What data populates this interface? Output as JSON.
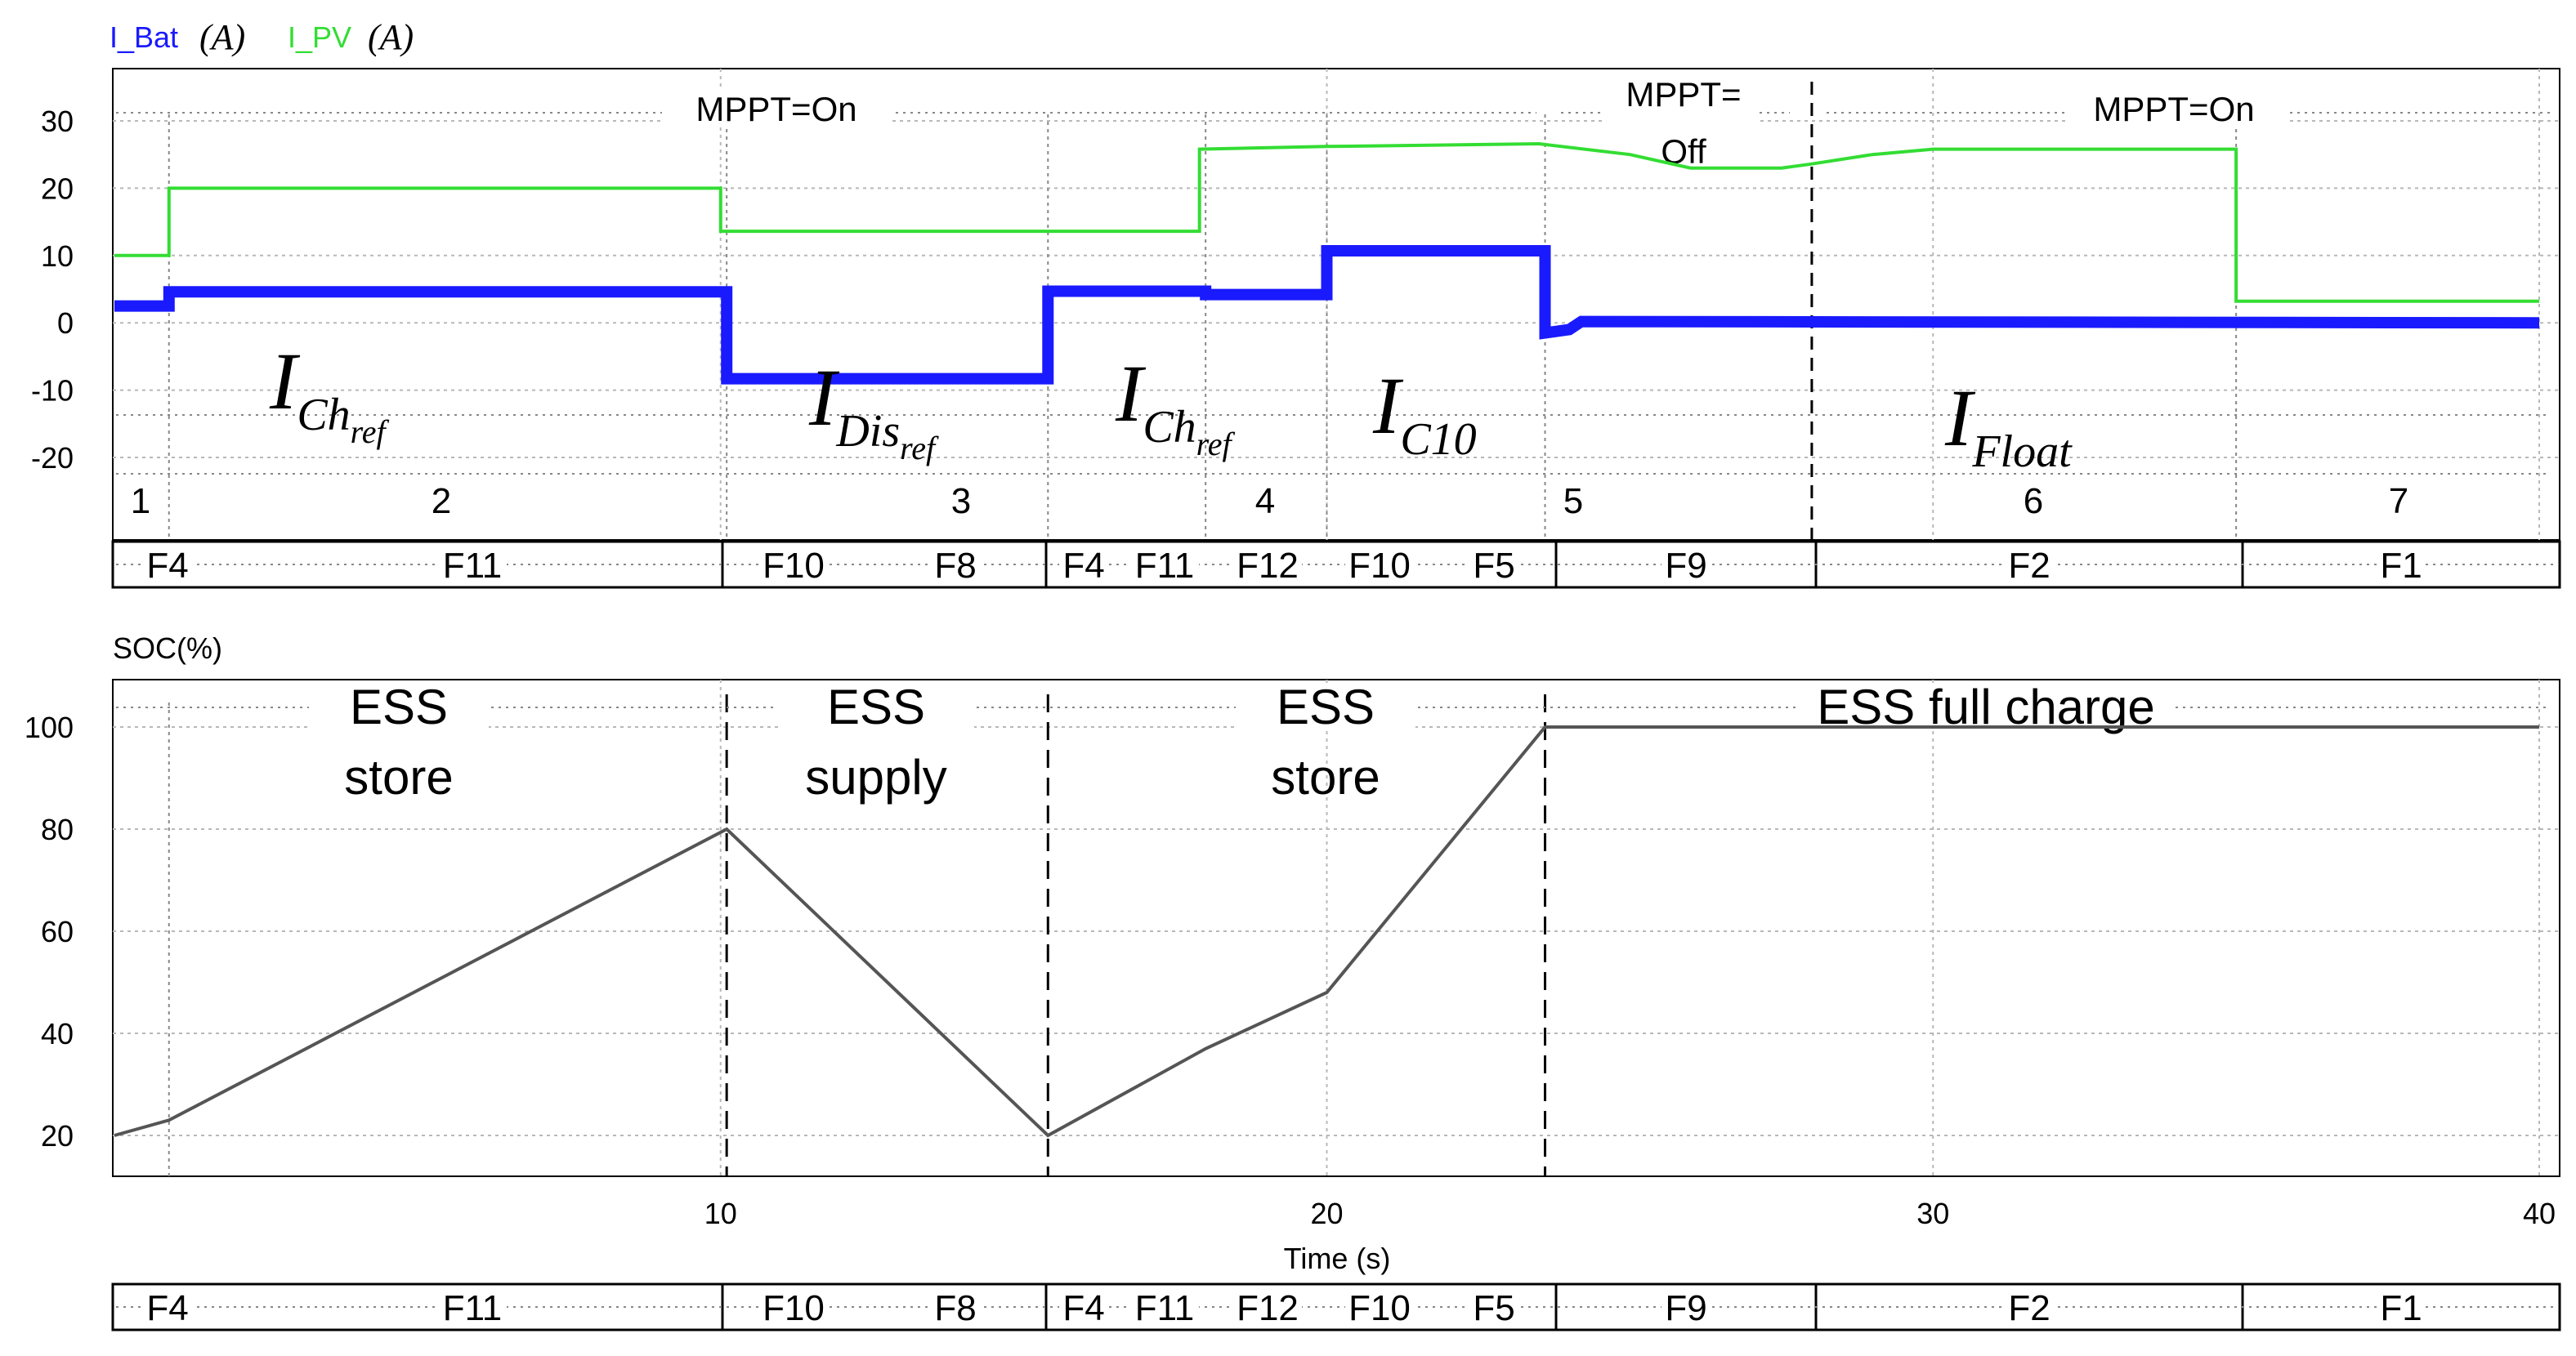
{
  "legend": {
    "ibat_label": "I_Bat",
    "ibat_unit": "(A)",
    "ipv_label": "I_PV",
    "ipv_unit": "(A)",
    "ibat_color": "#1a1aff",
    "ipv_color": "#33dd33"
  },
  "colors": {
    "soc_line": "#555555",
    "grid": "#b8b8b8",
    "annotation": "#888888",
    "frame": "#000000"
  },
  "chart_data": [
    {
      "type": "line",
      "title": "",
      "xlim": [
        0,
        40
      ],
      "ylim": [
        -20,
        30
      ],
      "ylabel": "",
      "yticks": [
        "30",
        "20",
        "10",
        "0",
        "-10",
        "-20"
      ],
      "series": [
        {
          "name": "I_PV",
          "color": "#33dd33",
          "x": [
            0,
            0.9,
            0.9,
            10,
            10,
            17.9,
            17.9,
            20,
            23.5,
            25,
            26,
            27.5,
            28,
            29,
            30,
            34,
            35,
            35,
            40
          ],
          "y": [
            10,
            10,
            20,
            20,
            13.6,
            13.6,
            25.8,
            26.2,
            26.6,
            25,
            23,
            23,
            23.6,
            25,
            25.8,
            25.8,
            25.8,
            3.2,
            3.2
          ]
        },
        {
          "name": "I_Bat",
          "color": "#1a1aff",
          "x": [
            0,
            0.9,
            0.9,
            10.1,
            10.1,
            15.4,
            15.4,
            18,
            18,
            20,
            20,
            23.6,
            23.6,
            24,
            24.2,
            40
          ],
          "y": [
            2.5,
            2.5,
            4.6,
            4.6,
            -8.3,
            -8.3,
            4.7,
            4.7,
            4.2,
            4.2,
            10.7,
            10.7,
            -1.5,
            -1,
            0.2,
            0
          ]
        }
      ],
      "annotations": {
        "mppt": [
          "MPPT=On",
          "MPPT=",
          "Off",
          "MPPT=On"
        ],
        "currents": [
          {
            "main": "I",
            "sub": "Ch",
            "subsub": "ref"
          },
          {
            "main": "I",
            "sub": "Dis",
            "subsub": "ref"
          },
          {
            "main": "I",
            "sub": "Ch",
            "subsub": "ref"
          },
          {
            "main": "I",
            "sub": "C10",
            "subsub": ""
          },
          {
            "main": "I",
            "sub": "Float",
            "subsub": ""
          }
        ],
        "intervals": [
          "1",
          "2",
          "3",
          "4",
          "5",
          "6",
          "7"
        ],
        "modes": [
          "F4",
          "F11",
          "F10",
          "F8",
          "F4",
          "F11",
          "F12",
          "F10",
          "F5",
          "F9",
          "F2",
          "F1"
        ]
      }
    },
    {
      "type": "line",
      "title": "",
      "ylabel": "SOC(%)",
      "xlabel": "Time (s)",
      "xlim": [
        0,
        40
      ],
      "ylim": [
        10,
        108
      ],
      "xticks": [
        "10",
        "20",
        "30",
        "40"
      ],
      "yticks": [
        "100",
        "80",
        "60",
        "40",
        "20"
      ],
      "series": [
        {
          "name": "",
          "color": "#555555",
          "x": [
            0,
            0.9,
            10.1,
            15.4,
            18,
            20,
            23.6,
            40
          ],
          "y": [
            20,
            23,
            80,
            20,
            37,
            48,
            100,
            100
          ]
        }
      ],
      "annotations": {
        "phases": [
          {
            "line1": "ESS",
            "line2": "store"
          },
          {
            "line1": "ESS",
            "line2": "supply"
          },
          {
            "line1": "ESS",
            "line2": "store"
          },
          {
            "line1": "ESS full charge",
            "line2": ""
          }
        ],
        "modes": [
          "F4",
          "F11",
          "F10",
          "F8",
          "F4",
          "F11",
          "F12",
          "F10",
          "F5",
          "F9",
          "F2",
          "F1"
        ]
      }
    }
  ]
}
